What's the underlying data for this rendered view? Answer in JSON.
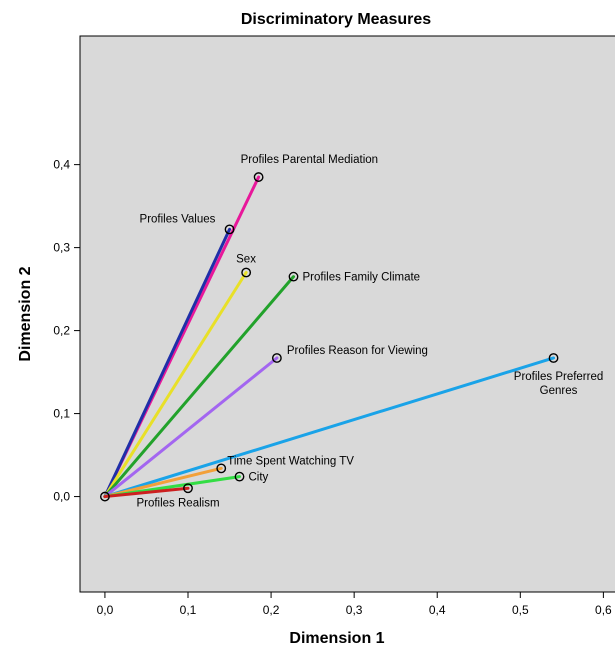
{
  "chart_data": {
    "type": "line",
    "title": "Discriminatory Measures",
    "xlabel": "Dimension 1",
    "ylabel": "Dimension 2",
    "xlim": [
      -0.03,
      0.62
    ],
    "ylim": [
      -0.115,
      0.555
    ],
    "x_ticks": [
      "0,0",
      "0,1",
      "0,2",
      "0,3",
      "0,4",
      "0,5",
      "0,6"
    ],
    "y_ticks": [
      "0,0",
      "0,1",
      "0,2",
      "0,3",
      "0,4"
    ],
    "x_tick_values": [
      0,
      0.1,
      0.2,
      0.3,
      0.4,
      0.5,
      0.6
    ],
    "y_tick_values": [
      0,
      0.1,
      0.2,
      0.3,
      0.4
    ],
    "grid": false,
    "background": "#d9d9d9",
    "origin": [
      0,
      0
    ],
    "series": [
      {
        "name": "Profiles Parental Mediation",
        "label_lines": [
          "Profiles Parental Mediation"
        ],
        "x": 0.185,
        "y": 0.385,
        "color": "#e8179a",
        "label_pos": "above"
      },
      {
        "name": "Profiles Values",
        "label_lines": [
          "Profiles Values"
        ],
        "x": 0.15,
        "y": 0.322,
        "color": "#1f2fa8",
        "label_pos": "upper-left"
      },
      {
        "name": "Sex",
        "label_lines": [
          "Sex"
        ],
        "x": 0.17,
        "y": 0.27,
        "color": "#e8e028",
        "label_pos": "above-right"
      },
      {
        "name": "Profiles Family Climate",
        "label_lines": [
          "Profiles Family Climate"
        ],
        "x": 0.227,
        "y": 0.265,
        "color": "#22a22b",
        "label_pos": "right"
      },
      {
        "name": "Profiles Reason for Viewing",
        "label_lines": [
          "Profiles Reason for Viewing"
        ],
        "x": 0.207,
        "y": 0.167,
        "color": "#a366f0",
        "label_pos": "above-right"
      },
      {
        "name": "Profiles Preferred Genres",
        "label_lines": [
          "Profiles Preferred",
          "Genres"
        ],
        "x": 0.54,
        "y": 0.167,
        "color": "#1aa3e8",
        "label_pos": "below"
      },
      {
        "name": "Time Spent Watching TV",
        "label_lines": [
          "Time Spent Watching TV"
        ],
        "x": 0.14,
        "y": 0.034,
        "color": "#f2a039",
        "label_pos": "above-right"
      },
      {
        "name": "City",
        "label_lines": [
          "City"
        ],
        "x": 0.162,
        "y": 0.024,
        "color": "#33dd44",
        "label_pos": "right"
      },
      {
        "name": "Profiles Realism",
        "label_lines": [
          "Profiles Realism"
        ],
        "x": 0.1,
        "y": 0.01,
        "color": "#cc2020",
        "label_pos": "below"
      }
    ]
  }
}
